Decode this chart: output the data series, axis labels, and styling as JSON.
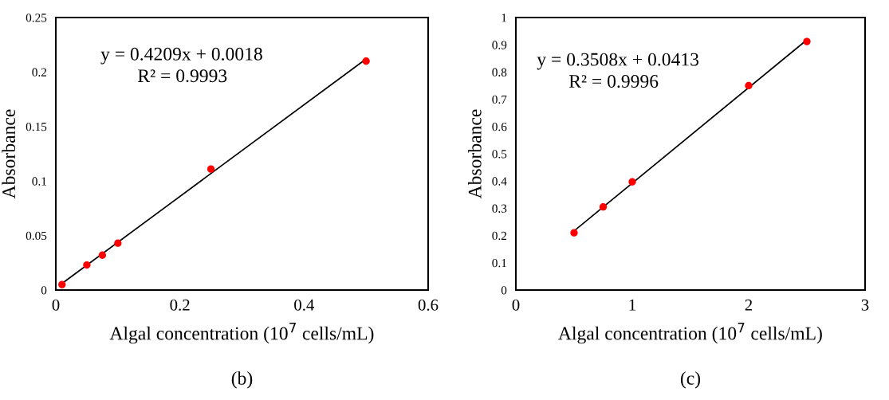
{
  "chart_data": [
    {
      "type": "scatter",
      "xlabel": "Algal concentration (10$^{7}$ cells/mL)",
      "ylabel": "Absorbance",
      "xlim": [
        0,
        0.6
      ],
      "xticks": [
        0,
        0.2,
        0.4,
        0.6
      ],
      "ylim": [
        0,
        0.25
      ],
      "yticks": [
        0,
        0.05,
        0.1,
        0.15,
        0.2,
        0.25
      ],
      "grid": false,
      "series": [
        {
          "marker": "circle",
          "color": "#ff0000",
          "x": [
            0.01,
            0.05,
            0.075,
            0.1,
            0.25,
            0.5
          ],
          "values": [
            0.005,
            0.023,
            0.032,
            0.043,
            0.111,
            0.21
          ]
        },
        {
          "type": "line",
          "marker": "none",
          "color": "#000000",
          "x": [
            0.01,
            0.5
          ],
          "values": [
            0.006,
            0.212
          ]
        }
      ],
      "annotations": [
        "y = 0.4209x + 0.0018",
        "R² = 0.9993",
        "(b)"
      ]
    },
    {
      "type": "scatter",
      "xlabel": "Algal concentration (10$^{7}$ cells/mL)",
      "ylabel": "Absorbance",
      "xlim": [
        0,
        3
      ],
      "xticks": [
        0,
        1,
        2,
        3
      ],
      "ylim": [
        0,
        1
      ],
      "yticks": [
        0,
        0.1,
        0.2,
        0.3,
        0.4,
        0.5,
        0.6,
        0.7,
        0.8,
        0.9,
        1
      ],
      "grid": false,
      "series": [
        {
          "marker": "circle",
          "color": "#ff0000",
          "x": [
            0.5,
            0.75,
            1,
            2,
            2.5
          ],
          "values": [
            0.21,
            0.305,
            0.397,
            0.75,
            0.912
          ]
        },
        {
          "type": "line",
          "marker": "none",
          "color": "#000000",
          "x": [
            0.5,
            2.5
          ],
          "values": [
            0.217,
            0.918
          ]
        }
      ],
      "annotations": [
        "y = 0.3508x + 0.0413",
        "R² = 0.9996",
        "(c)"
      ]
    }
  ]
}
